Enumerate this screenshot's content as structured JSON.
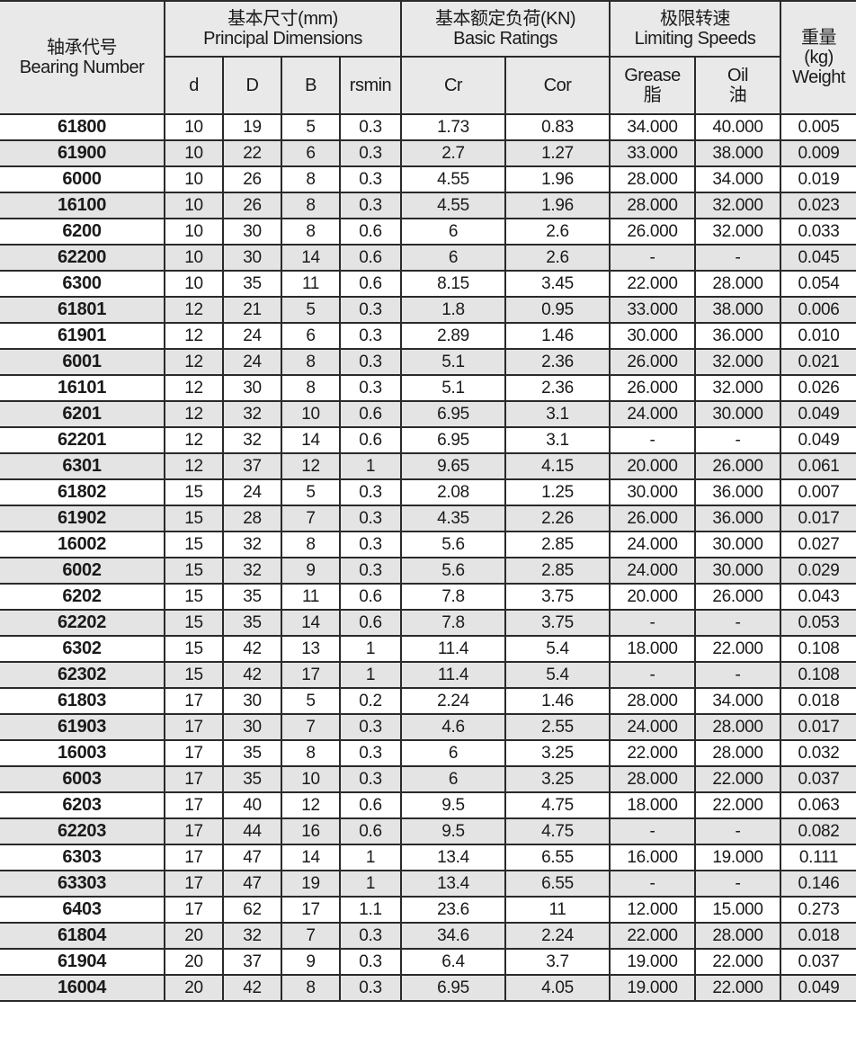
{
  "header": {
    "bearing_number_cn": "轴承代号",
    "bearing_number_en": "Bearing Number",
    "principal_cn": "基本尺寸(mm)",
    "principal_en": "Principal Dimensions",
    "ratings_cn": "基本额定负荷(KN)",
    "ratings_en": "Basic Ratings",
    "speeds_cn": "极限转速",
    "speeds_en": "Limiting Speeds",
    "weight_cn": "重量",
    "weight_unit": "(kg)",
    "weight_en": "Weight",
    "d": "d",
    "D": "D",
    "B": "B",
    "rsmin": "rsmin",
    "Cr": "Cr",
    "Cor": "Cor",
    "grease_en": "Grease",
    "grease_cn": "脂",
    "oil_en": "Oil",
    "oil_cn": "油"
  },
  "rows": [
    [
      "61800",
      "10",
      "19",
      "5",
      "0.3",
      "1.73",
      "0.83",
      "34.000",
      "40.000",
      "0.005"
    ],
    [
      "61900",
      "10",
      "22",
      "6",
      "0.3",
      "2.7",
      "1.27",
      "33.000",
      "38.000",
      "0.009"
    ],
    [
      "6000",
      "10",
      "26",
      "8",
      "0.3",
      "4.55",
      "1.96",
      "28.000",
      "34.000",
      "0.019"
    ],
    [
      "16100",
      "10",
      "26",
      "8",
      "0.3",
      "4.55",
      "1.96",
      "28.000",
      "32.000",
      "0.023"
    ],
    [
      "6200",
      "10",
      "30",
      "8",
      "0.6",
      "6",
      "2.6",
      "26.000",
      "32.000",
      "0.033"
    ],
    [
      "62200",
      "10",
      "30",
      "14",
      "0.6",
      "6",
      "2.6",
      "-",
      "-",
      "0.045"
    ],
    [
      "6300",
      "10",
      "35",
      "11",
      "0.6",
      "8.15",
      "3.45",
      "22.000",
      "28.000",
      "0.054"
    ],
    [
      "61801",
      "12",
      "21",
      "5",
      "0.3",
      "1.8",
      "0.95",
      "33.000",
      "38.000",
      "0.006"
    ],
    [
      "61901",
      "12",
      "24",
      "6",
      "0.3",
      "2.89",
      "1.46",
      "30.000",
      "36.000",
      "0.010"
    ],
    [
      "6001",
      "12",
      "24",
      "8",
      "0.3",
      "5.1",
      "2.36",
      "26.000",
      "32.000",
      "0.021"
    ],
    [
      "16101",
      "12",
      "30",
      "8",
      "0.3",
      "5.1",
      "2.36",
      "26.000",
      "32.000",
      "0.026"
    ],
    [
      "6201",
      "12",
      "32",
      "10",
      "0.6",
      "6.95",
      "3.1",
      "24.000",
      "30.000",
      "0.049"
    ],
    [
      "62201",
      "12",
      "32",
      "14",
      "0.6",
      "6.95",
      "3.1",
      "-",
      "-",
      "0.049"
    ],
    [
      "6301",
      "12",
      "37",
      "12",
      "1",
      "9.65",
      "4.15",
      "20.000",
      "26.000",
      "0.061"
    ],
    [
      "61802",
      "15",
      "24",
      "5",
      "0.3",
      "2.08",
      "1.25",
      "30.000",
      "36.000",
      "0.007"
    ],
    [
      "61902",
      "15",
      "28",
      "7",
      "0.3",
      "4.35",
      "2.26",
      "26.000",
      "36.000",
      "0.017"
    ],
    [
      "16002",
      "15",
      "32",
      "8",
      "0.3",
      "5.6",
      "2.85",
      "24.000",
      "30.000",
      "0.027"
    ],
    [
      "6002",
      "15",
      "32",
      "9",
      "0.3",
      "5.6",
      "2.85",
      "24.000",
      "30.000",
      "0.029"
    ],
    [
      "6202",
      "15",
      "35",
      "11",
      "0.6",
      "7.8",
      "3.75",
      "20.000",
      "26.000",
      "0.043"
    ],
    [
      "62202",
      "15",
      "35",
      "14",
      "0.6",
      "7.8",
      "3.75",
      "-",
      "-",
      "0.053"
    ],
    [
      "6302",
      "15",
      "42",
      "13",
      "1",
      "11.4",
      "5.4",
      "18.000",
      "22.000",
      "0.108"
    ],
    [
      "62302",
      "15",
      "42",
      "17",
      "1",
      "11.4",
      "5.4",
      "-",
      "-",
      "0.108"
    ],
    [
      "61803",
      "17",
      "30",
      "5",
      "0.2",
      "2.24",
      "1.46",
      "28.000",
      "34.000",
      "0.018"
    ],
    [
      "61903",
      "17",
      "30",
      "7",
      "0.3",
      "4.6",
      "2.55",
      "24.000",
      "28.000",
      "0.017"
    ],
    [
      "16003",
      "17",
      "35",
      "8",
      "0.3",
      "6",
      "3.25",
      "22.000",
      "28.000",
      "0.032"
    ],
    [
      "6003",
      "17",
      "35",
      "10",
      "0.3",
      "6",
      "3.25",
      "28.000",
      "22.000",
      "0.037"
    ],
    [
      "6203",
      "17",
      "40",
      "12",
      "0.6",
      "9.5",
      "4.75",
      "18.000",
      "22.000",
      "0.063"
    ],
    [
      "62203",
      "17",
      "44",
      "16",
      "0.6",
      "9.5",
      "4.75",
      "-",
      "-",
      "0.082"
    ],
    [
      "6303",
      "17",
      "47",
      "14",
      "1",
      "13.4",
      "6.55",
      "16.000",
      "19.000",
      "0.111"
    ],
    [
      "63303",
      "17",
      "47",
      "19",
      "1",
      "13.4",
      "6.55",
      "-",
      "-",
      "0.146"
    ],
    [
      "6403",
      "17",
      "62",
      "17",
      "1.1",
      "23.6",
      "11",
      "12.000",
      "15.000",
      "0.273"
    ],
    [
      "61804",
      "20",
      "32",
      "7",
      "0.3",
      "34.6",
      "2.24",
      "22.000",
      "28.000",
      "0.018"
    ],
    [
      "61904",
      "20",
      "37",
      "9",
      "0.3",
      "6.4",
      "3.7",
      "19.000",
      "22.000",
      "0.037"
    ],
    [
      "16004",
      "20",
      "42",
      "8",
      "0.3",
      "6.95",
      "4.05",
      "19.000",
      "22.000",
      "0.049"
    ]
  ],
  "colors": {
    "header_bg": "#e9e9e9",
    "alt_row_bg": "#e4e4e4",
    "border": "#2a2a2a"
  }
}
